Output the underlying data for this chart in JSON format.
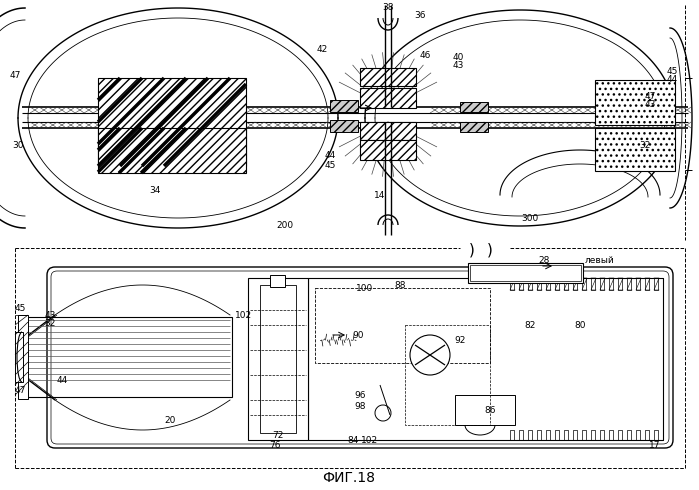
{
  "title": "ФИГ.18",
  "bg_color": "#ffffff",
  "fig_width": 6.99,
  "fig_height": 4.9,
  "dpi": 100
}
